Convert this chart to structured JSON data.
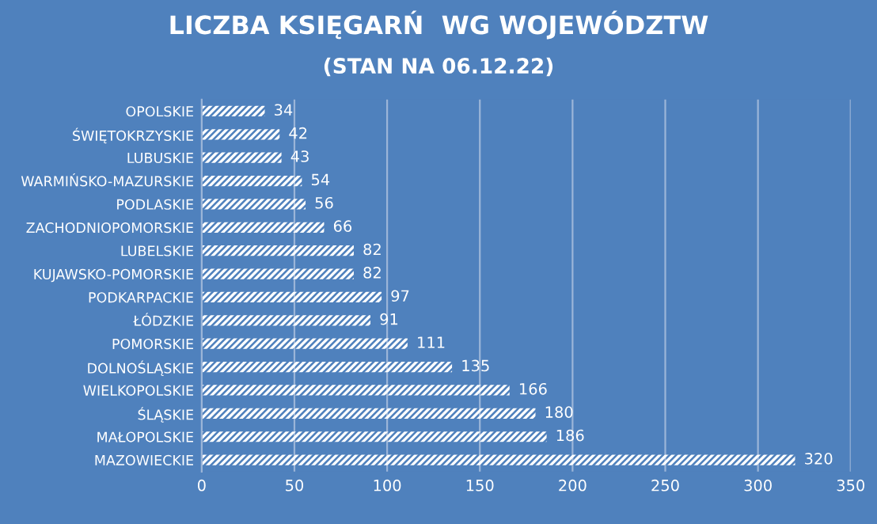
{
  "chart_data": {
    "type": "bar",
    "orientation": "horizontal",
    "title": "LICZBA KSIĘGARŃ  WG WOJEWÓDZTW",
    "subtitle": "(STAN NA 06.12.22)",
    "categories": [
      "OPOLSKIE",
      "ŚWIĘTOKRZYSKIE",
      "LUBUSKIE",
      "WARMIŃSKO-MAZURSKIE",
      "PODLASKIE",
      "ZACHODNIOPOMORSKIE",
      "LUBELSKIE",
      "KUJAWSKO-POMORSKIE",
      "PODKARPACKIE",
      "ŁÓDZKIE",
      "POMORSKIE",
      "DOLNOŚLĄSKIE",
      "WIELKOPOLSKIE",
      "ŚLĄSKIE",
      "MAŁOPOLSKIE",
      "MAZOWIECKIE"
    ],
    "values": [
      34,
      42,
      43,
      54,
      56,
      66,
      82,
      82,
      97,
      91,
      111,
      135,
      166,
      180,
      186,
      320
    ],
    "color": "#ffffff",
    "xlim": [
      0,
      350
    ],
    "xticks": [
      0,
      50,
      100,
      150,
      200,
      250,
      300,
      350
    ],
    "grid": "x",
    "data_labels": true
  }
}
